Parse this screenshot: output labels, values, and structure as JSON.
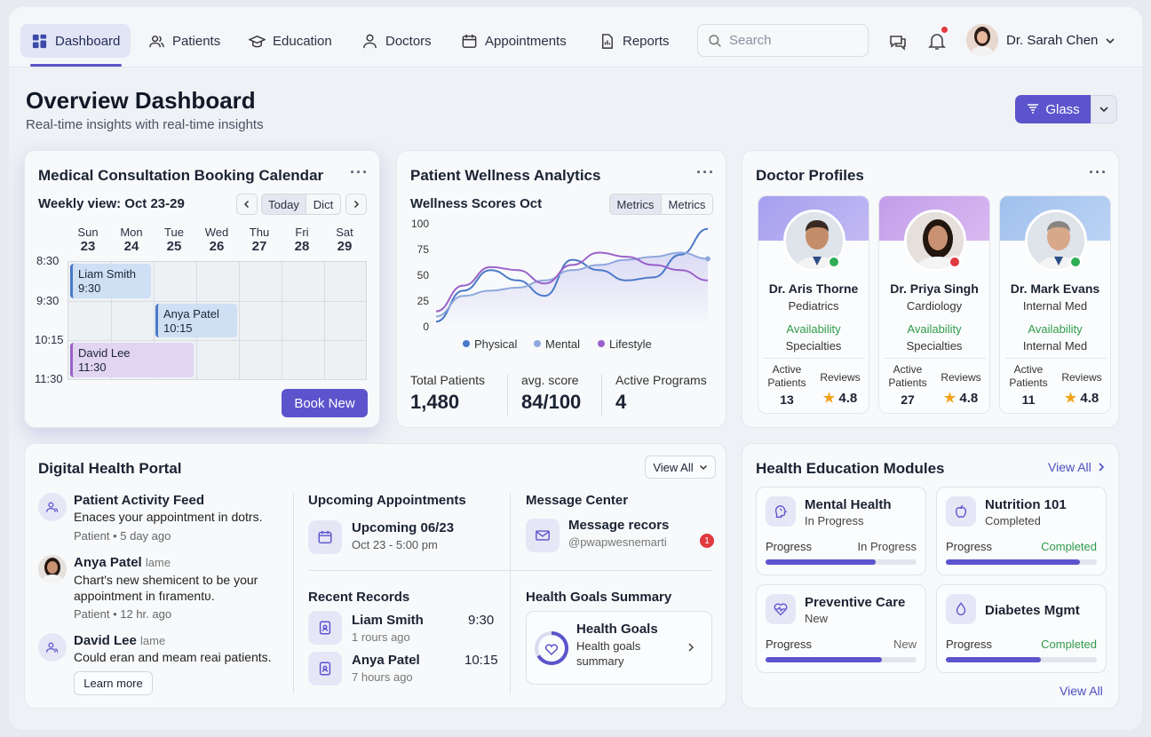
{
  "nav": {
    "tabs": [
      "Dashboard",
      "Patients",
      "Education",
      "Doctors",
      "Appointments",
      "Reports"
    ],
    "search_placeholder": "Search",
    "user": "Dr. Sarah Chen"
  },
  "page": {
    "title": "Overview Dashboard",
    "subtitle": "Real-time insights with real-time insights",
    "glass_label": "Glass"
  },
  "calendar": {
    "title": "Medical Consultation Booking Calendar",
    "week": "Weekly view: Oct 23-29",
    "today": "Today",
    "dict": "Dict",
    "days": [
      {
        "d": "Sun",
        "n": "23"
      },
      {
        "d": "Mon",
        "n": "24"
      },
      {
        "d": "Tue",
        "n": "25"
      },
      {
        "d": "Wed",
        "n": "26"
      },
      {
        "d": "Thu",
        "n": "27"
      },
      {
        "d": "Fri",
        "n": "28"
      },
      {
        "d": "Sat",
        "n": "29"
      }
    ],
    "times": [
      "8:30",
      "9:30",
      "10:15",
      "11:30"
    ],
    "events": [
      {
        "name": "Liam Smith",
        "time": "9:30"
      },
      {
        "name": "Anya Patel",
        "time": "10:15"
      },
      {
        "name": "David Lee",
        "time": "11:30"
      }
    ],
    "book": "Book New"
  },
  "wellness": {
    "title": "Patient Wellness Analytics",
    "subtitle": "Wellness Scores Oct",
    "seg": [
      "Metrics",
      "Metrics"
    ],
    "stats": [
      {
        "label": "Total Patients",
        "value": "1,480"
      },
      {
        "label": "avg. score",
        "value": "84/100"
      },
      {
        "label": "Active Programs",
        "value": "4"
      }
    ]
  },
  "chart_data": {
    "type": "line",
    "title": "Wellness Scores Oct",
    "y_ticks": [
      "100",
      "75",
      "50",
      "25",
      "0"
    ],
    "ylim": [
      0,
      100
    ],
    "x": [
      0,
      1,
      2,
      3,
      4,
      5,
      6,
      7,
      8,
      9,
      10
    ],
    "series": [
      {
        "name": "Physical",
        "color": "#4a79c8",
        "values": [
          5,
          35,
          55,
          45,
          30,
          65,
          55,
          45,
          48,
          70,
          95
        ]
      },
      {
        "name": "Mental",
        "color": "#8fa8dd",
        "values": [
          10,
          30,
          35,
          38,
          45,
          55,
          60,
          65,
          68,
          72,
          66
        ]
      },
      {
        "name": "Lifestyle",
        "color": "#9b61c9",
        "values": [
          15,
          40,
          58,
          55,
          42,
          60,
          72,
          68,
          60,
          55,
          45
        ]
      }
    ],
    "legend": "bottom"
  },
  "doctors": {
    "title": "Doctor Profiles",
    "list": [
      {
        "name": "Dr. Aris Thorne",
        "spec": "Pediatrics",
        "avail": "Availability",
        "spec2": "Specialties",
        "ap_label": "Active Patients",
        "ap": "13",
        "rv_label": "Reviews",
        "rv": "4.8",
        "band": "#b0aaf0",
        "status": "#2fae55"
      },
      {
        "name": "Dr. Priya Singh",
        "spec": "Cardiology",
        "avail": "Availability",
        "spec2": "Specialties",
        "ap_label": "Active Patients",
        "ap": "27",
        "rv_label": "Reviews",
        "rv": "4.8",
        "band": "#c9a6ec",
        "status": "#e0393e"
      },
      {
        "name": "Dr. Mark Evans",
        "spec": "Internal Med",
        "avail": "Availability",
        "spec2": "Internal Med",
        "ap_label": "Active Patients",
        "ap": "11",
        "rv_label": "Reviews",
        "rv": "4.8",
        "band": "#a8c6f0",
        "status": "#2fae55"
      }
    ]
  },
  "portal": {
    "title": "Digital Health Portal",
    "view_all": "View All",
    "feed": [
      {
        "title": "Patient Activity Feed",
        "tag": "",
        "text": "Enaces your appointment in dotrs.",
        "meta": "Patient • 5 day ago"
      },
      {
        "title": "Anya Patel",
        "tag": "lame",
        "text": "Chart's new shemicent to be your appointment in fıramentʋ.",
        "meta": "Patient • 12 hr. ago"
      },
      {
        "title": "David Lee",
        "tag": "lame",
        "text": "Could eran and meam reai patients.",
        "meta": ""
      }
    ],
    "learn_more": "Learn more",
    "upcoming": {
      "title": "Upcoming Appointments",
      "item": "Upcoming 06/23",
      "sub": "Oct 23 - 5:00 pm"
    },
    "messages": {
      "title": "Message Center",
      "item": "Message recors",
      "sub": "@pwapwesnemarti",
      "badge": "1"
    },
    "records": {
      "title": "Recent Records",
      "items": [
        {
          "name": "Liam Smith",
          "time": "9:30",
          "sub": "1 rours ago"
        },
        {
          "name": "Anya Patel",
          "time": "10:15",
          "sub": "7 hours ago"
        }
      ]
    },
    "goals": {
      "title": "Health Goals Summary",
      "item": "Health Goals",
      "sub": "Health goals summary"
    }
  },
  "modules": {
    "title": "Health Education Modules",
    "view_all": "View All",
    "view_all_bottom": "View All",
    "progress_label": "Progress",
    "items": [
      {
        "title": "Mental Health",
        "sub": "In Progress",
        "status": "In Progress",
        "pct": 0.73,
        "status_color": "#444"
      },
      {
        "title": "Nutrition 101",
        "sub": "Completed",
        "status": "Completed",
        "pct": 0.89,
        "status_color": "#2e9a4a"
      },
      {
        "title": "Preventive Care",
        "sub": "New",
        "status": "New",
        "pct": 0.77,
        "status_color": "#666"
      },
      {
        "title": "Diabetes Mgmt",
        "sub": "",
        "status": "Completed",
        "pct": 0.63,
        "status_color": "#2e9a4a"
      }
    ]
  }
}
